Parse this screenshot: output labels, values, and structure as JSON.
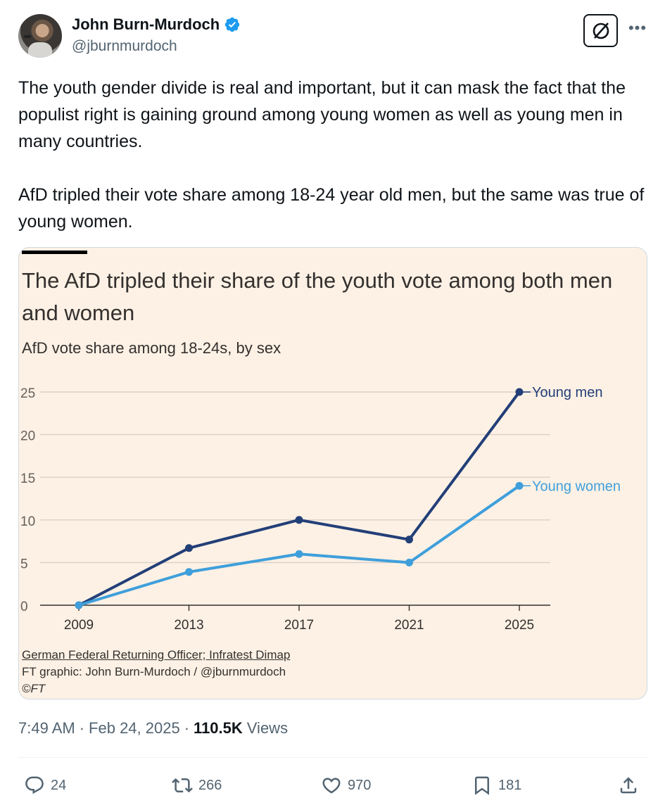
{
  "author": {
    "display_name": "John Burn-Murdoch",
    "handle": "@jburnmurdoch",
    "verified_icon": "verified-badge-icon"
  },
  "tweet": {
    "text": "The youth gender divide is real and important, but it can mask the fact that the populist right is gaining ground among young women as well as young men in many countries.\n\nAfD tripled their vote share among 18-24 year old men, but the same was true of young women."
  },
  "chart_data": {
    "type": "line",
    "title": "The AfD tripled their share of the youth vote among both men and women",
    "subtitle": "AfD vote share among 18-24s, by sex",
    "x": [
      "2009",
      "2013",
      "2017",
      "2021",
      "2025"
    ],
    "y_ticks": [
      "0",
      "5",
      "10",
      "15",
      "20",
      "25"
    ],
    "ylim": [
      0,
      25
    ],
    "grid": true,
    "series": [
      {
        "name": "Young men",
        "color": "#233f78",
        "values": [
          0,
          6.7,
          10,
          7.7,
          25
        ]
      },
      {
        "name": "Young women",
        "color": "#3f9fdb",
        "values": [
          0,
          3.9,
          6,
          5,
          14
        ]
      }
    ],
    "source": "German Federal Returning Officer; Infratest Dimap",
    "credit": "FT graphic: John Burn-Murdoch / @jburnmurdoch",
    "copyright": "©FT"
  },
  "meta": {
    "time": "7:49 AM",
    "separator": "·",
    "date": "Feb 24, 2025",
    "views_count": "110.5K",
    "views_label": "Views"
  },
  "actions": {
    "replies": "24",
    "reposts": "266",
    "likes": "970",
    "bookmarks": "181"
  },
  "colors": {
    "accent": "#1d9bf0",
    "muted": "#536471",
    "chart_bg": "#fdf1e5"
  }
}
